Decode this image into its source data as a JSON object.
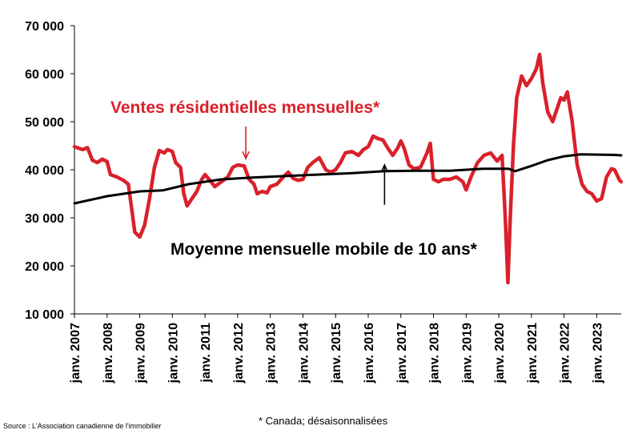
{
  "chart_data": {
    "type": "line",
    "xlim": [
      2007,
      2023.75
    ],
    "ylim": [
      10000,
      70000
    ],
    "yticks": [
      "10 000",
      "20 000",
      "30 000",
      "40 000",
      "50 000",
      "60 000",
      "70 000"
    ],
    "ytick_values": [
      10000,
      20000,
      30000,
      40000,
      50000,
      60000,
      70000
    ],
    "xticks": [
      "janv. 2007",
      "janv. 2008",
      "janv. 2009",
      "janv. 2010",
      "janv. 2011",
      "janv. 2012",
      "janv. 2013",
      "janv. 2014",
      "janv. 2015",
      "janv. 2016",
      "janv. 2017",
      "janv. 2018",
      "janv. 2019",
      "janv. 2020",
      "janv. 2021",
      "janv. 2022",
      "janv. 2023"
    ],
    "xtick_values": [
      2007,
      2008,
      2009,
      2010,
      2011,
      2012,
      2013,
      2014,
      2015,
      2016,
      2017,
      2018,
      2019,
      2020,
      2021,
      2022,
      2023
    ],
    "grid": false,
    "series": [
      {
        "name": "Ventes résidentielles mensuelles*",
        "color": "#d9212b",
        "points": [
          [
            2007.0,
            44800
          ],
          [
            2007.25,
            44200
          ],
          [
            2007.4,
            44600
          ],
          [
            2007.55,
            42000
          ],
          [
            2007.7,
            41500
          ],
          [
            2007.85,
            42200
          ],
          [
            2008.0,
            41700
          ],
          [
            2008.1,
            39000
          ],
          [
            2008.3,
            38500
          ],
          [
            2008.5,
            37800
          ],
          [
            2008.65,
            37000
          ],
          [
            2008.75,
            32000
          ],
          [
            2008.85,
            27000
          ],
          [
            2009.0,
            26000
          ],
          [
            2009.15,
            28500
          ],
          [
            2009.3,
            34000
          ],
          [
            2009.45,
            40500
          ],
          [
            2009.6,
            44000
          ],
          [
            2009.75,
            43500
          ],
          [
            2009.85,
            44200
          ],
          [
            2010.0,
            43800
          ],
          [
            2010.1,
            41500
          ],
          [
            2010.25,
            40500
          ],
          [
            2010.35,
            35000
          ],
          [
            2010.45,
            32500
          ],
          [
            2010.6,
            34000
          ],
          [
            2010.75,
            35500
          ],
          [
            2010.9,
            38000
          ],
          [
            2011.0,
            39000
          ],
          [
            2011.15,
            37800
          ],
          [
            2011.3,
            36500
          ],
          [
            2011.5,
            37500
          ],
          [
            2011.7,
            38500
          ],
          [
            2011.85,
            40500
          ],
          [
            2012.0,
            41000
          ],
          [
            2012.2,
            40800
          ],
          [
            2012.35,
            38000
          ],
          [
            2012.5,
            37000
          ],
          [
            2012.6,
            35000
          ],
          [
            2012.75,
            35500
          ],
          [
            2012.9,
            35200
          ],
          [
            2013.0,
            36500
          ],
          [
            2013.2,
            37000
          ],
          [
            2013.4,
            38500
          ],
          [
            2013.55,
            39500
          ],
          [
            2013.7,
            38200
          ],
          [
            2013.85,
            37800
          ],
          [
            2014.0,
            38000
          ],
          [
            2014.15,
            40500
          ],
          [
            2014.3,
            41500
          ],
          [
            2014.5,
            42500
          ],
          [
            2014.7,
            40000
          ],
          [
            2014.85,
            39500
          ],
          [
            2015.0,
            40000
          ],
          [
            2015.15,
            41500
          ],
          [
            2015.3,
            43500
          ],
          [
            2015.5,
            43800
          ],
          [
            2015.7,
            43000
          ],
          [
            2015.85,
            44200
          ],
          [
            2016.0,
            44800
          ],
          [
            2016.15,
            47000
          ],
          [
            2016.3,
            46500
          ],
          [
            2016.45,
            46200
          ],
          [
            2016.6,
            44500
          ],
          [
            2016.75,
            43000
          ],
          [
            2016.9,
            44500
          ],
          [
            2017.0,
            46000
          ],
          [
            2017.1,
            44500
          ],
          [
            2017.25,
            41000
          ],
          [
            2017.4,
            40200
          ],
          [
            2017.6,
            40500
          ],
          [
            2017.8,
            43500
          ],
          [
            2017.9,
            45500
          ],
          [
            2018.0,
            38000
          ],
          [
            2018.15,
            37500
          ],
          [
            2018.3,
            38000
          ],
          [
            2018.5,
            38000
          ],
          [
            2018.7,
            38500
          ],
          [
            2018.9,
            37500
          ],
          [
            2019.0,
            35800
          ],
          [
            2019.15,
            38500
          ],
          [
            2019.35,
            41500
          ],
          [
            2019.55,
            43000
          ],
          [
            2019.75,
            43500
          ],
          [
            2019.95,
            41800
          ],
          [
            2020.1,
            43000
          ],
          [
            2020.2,
            30000
          ],
          [
            2020.28,
            16500
          ],
          [
            2020.35,
            30000
          ],
          [
            2020.45,
            45000
          ],
          [
            2020.55,
            55000
          ],
          [
            2020.7,
            59500
          ],
          [
            2020.85,
            57500
          ],
          [
            2021.0,
            59000
          ],
          [
            2021.15,
            61000
          ],
          [
            2021.25,
            64000
          ],
          [
            2021.35,
            58000
          ],
          [
            2021.5,
            52000
          ],
          [
            2021.65,
            50000
          ],
          [
            2021.75,
            52000
          ],
          [
            2021.9,
            55000
          ],
          [
            2022.0,
            54500
          ],
          [
            2022.1,
            56200
          ],
          [
            2022.25,
            50000
          ],
          [
            2022.4,
            41000
          ],
          [
            2022.55,
            37000
          ],
          [
            2022.7,
            35500
          ],
          [
            2022.85,
            35000
          ],
          [
            2023.0,
            33500
          ],
          [
            2023.15,
            34000
          ],
          [
            2023.3,
            38500
          ],
          [
            2023.45,
            40200
          ],
          [
            2023.55,
            40000
          ],
          [
            2023.7,
            37800
          ],
          [
            2023.75,
            37500
          ]
        ]
      },
      {
        "name": "Moyenne mensuelle mobile de 10 ans*",
        "color": "#000000",
        "points": [
          [
            2007.0,
            33000
          ],
          [
            2008.0,
            34500
          ],
          [
            2009.0,
            35500
          ],
          [
            2009.7,
            35700
          ],
          [
            2010.5,
            37000
          ],
          [
            2011.5,
            38000
          ],
          [
            2012.5,
            38400
          ],
          [
            2013.5,
            38700
          ],
          [
            2014.5,
            39000
          ],
          [
            2015.5,
            39300
          ],
          [
            2016.5,
            39700
          ],
          [
            2017.5,
            39800
          ],
          [
            2018.5,
            39800
          ],
          [
            2019.5,
            40200
          ],
          [
            2020.3,
            40200
          ],
          [
            2020.5,
            39700
          ],
          [
            2021.0,
            40800
          ],
          [
            2021.5,
            42000
          ],
          [
            2022.0,
            42800
          ],
          [
            2022.5,
            43200
          ],
          [
            2023.5,
            43100
          ],
          [
            2023.75,
            43000
          ]
        ]
      }
    ],
    "annotations": [
      {
        "text": "Ventes résidentielles mensuelles*",
        "color": "#d9212b",
        "arrow_to": [
          2012.25,
          42300
        ],
        "arrow_from": [
          2012.25,
          49000
        ]
      },
      {
        "text": "Moyenne mensuelle mobile de 10 ans*",
        "color": "#000000",
        "arrow_to": [
          2016.5,
          41000
        ],
        "arrow_from": [
          2016.5,
          32700
        ]
      }
    ]
  },
  "footnote": "* Canada; désaisonnalisées",
  "source": "Source : L'Association canadienne de l'immobilier"
}
